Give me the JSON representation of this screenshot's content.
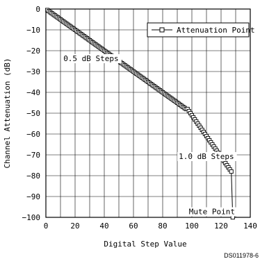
{
  "chart_data": {
    "type": "line",
    "xlabel": "Digital Step Value",
    "ylabel": "Channel Attenuation (dB)",
    "xlim": [
      0,
      140
    ],
    "ylim": [
      -100,
      0
    ],
    "x_ticks": [
      0,
      20,
      40,
      60,
      80,
      100,
      120,
      140
    ],
    "y_ticks": [
      0,
      -10,
      -20,
      -30,
      -40,
      -50,
      -60,
      -70,
      -80,
      -90,
      -100
    ],
    "x_tick_labels": [
      "0",
      "20",
      "40",
      "60",
      "80",
      "100",
      "120",
      "140"
    ],
    "y_tick_labels": [
      "0",
      "−10",
      "−20",
      "−30",
      "−40",
      "−50",
      "−60",
      "−70",
      "−80",
      "−90",
      "−100"
    ],
    "grid": true,
    "legend_position": "top-right",
    "series": [
      {
        "name": "Attenuation Point",
        "marker": "square",
        "segments": [
          {
            "x_start": 1,
            "x_end": 96,
            "x_step": 1,
            "y_start": -0.5,
            "y_step": -0.5
          },
          {
            "x_start": 97,
            "x_end": 127,
            "x_step": 1,
            "y_start": -48.0,
            "y_step": -1.0
          },
          {
            "x_start": 128,
            "x_end": 128,
            "x_step": 1,
            "y_start": -100,
            "y_step": 0
          }
        ]
      }
    ],
    "annotations": [
      {
        "text": "0.5 dB Steps",
        "x": 12,
        "y": -25
      },
      {
        "text": "1.0 dB Steps",
        "x": 91,
        "y": -72
      },
      {
        "text": "Mute Point",
        "x": 98,
        "y": -98.5
      }
    ]
  },
  "figure_id": "DS011978-6"
}
